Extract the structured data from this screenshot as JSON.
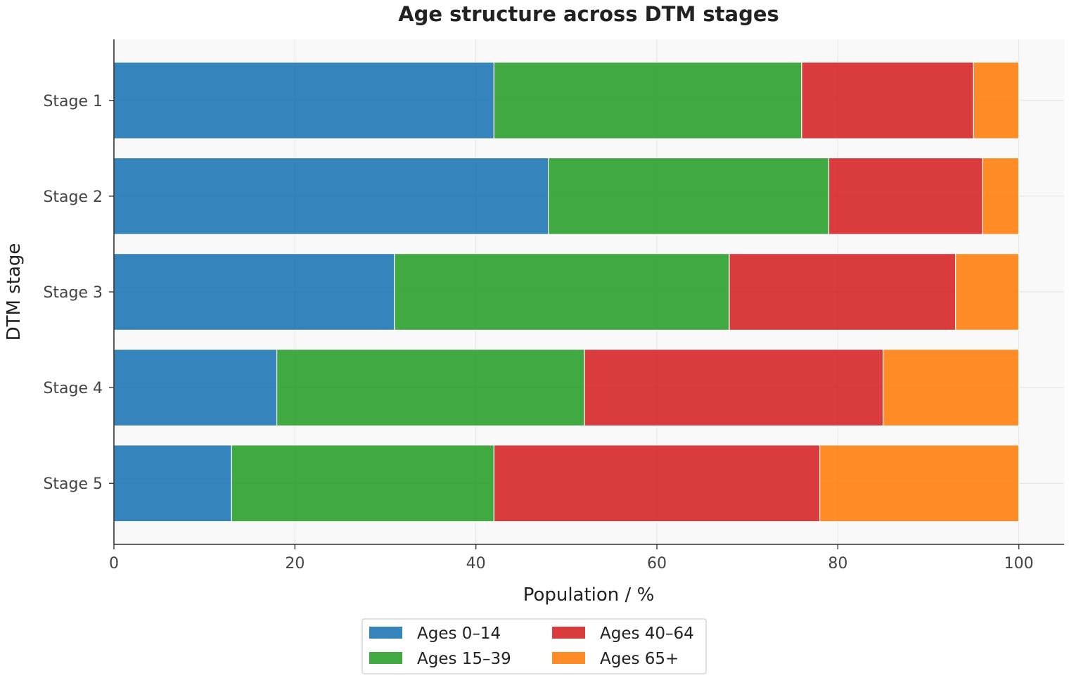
{
  "chart_data": {
    "type": "bar",
    "orientation": "horizontal",
    "stacked": true,
    "title": "Age structure across DTM stages",
    "xlabel": "Population / %",
    "ylabel": "DTM stage",
    "xlim": [
      0,
      105
    ],
    "xticks": [
      0,
      20,
      40,
      60,
      80,
      100
    ],
    "grid": true,
    "legend_position": "bottom-center",
    "categories": [
      "Stage 1",
      "Stage 2",
      "Stage 3",
      "Stage 4",
      "Stage 5"
    ],
    "series": [
      {
        "name": "Ages 0–14",
        "color": "#1f77b4",
        "values": [
          42,
          48,
          31,
          18,
          13
        ]
      },
      {
        "name": "Ages 15–39",
        "color": "#2ca02c",
        "values": [
          34,
          31,
          37,
          34,
          29
        ]
      },
      {
        "name": "Ages 40–64",
        "color": "#d62728",
        "values": [
          19,
          17,
          25,
          33,
          36
        ]
      },
      {
        "name": "Ages 65+",
        "color": "#ff7f0e",
        "values": [
          5,
          4,
          7,
          15,
          22
        ]
      }
    ]
  }
}
